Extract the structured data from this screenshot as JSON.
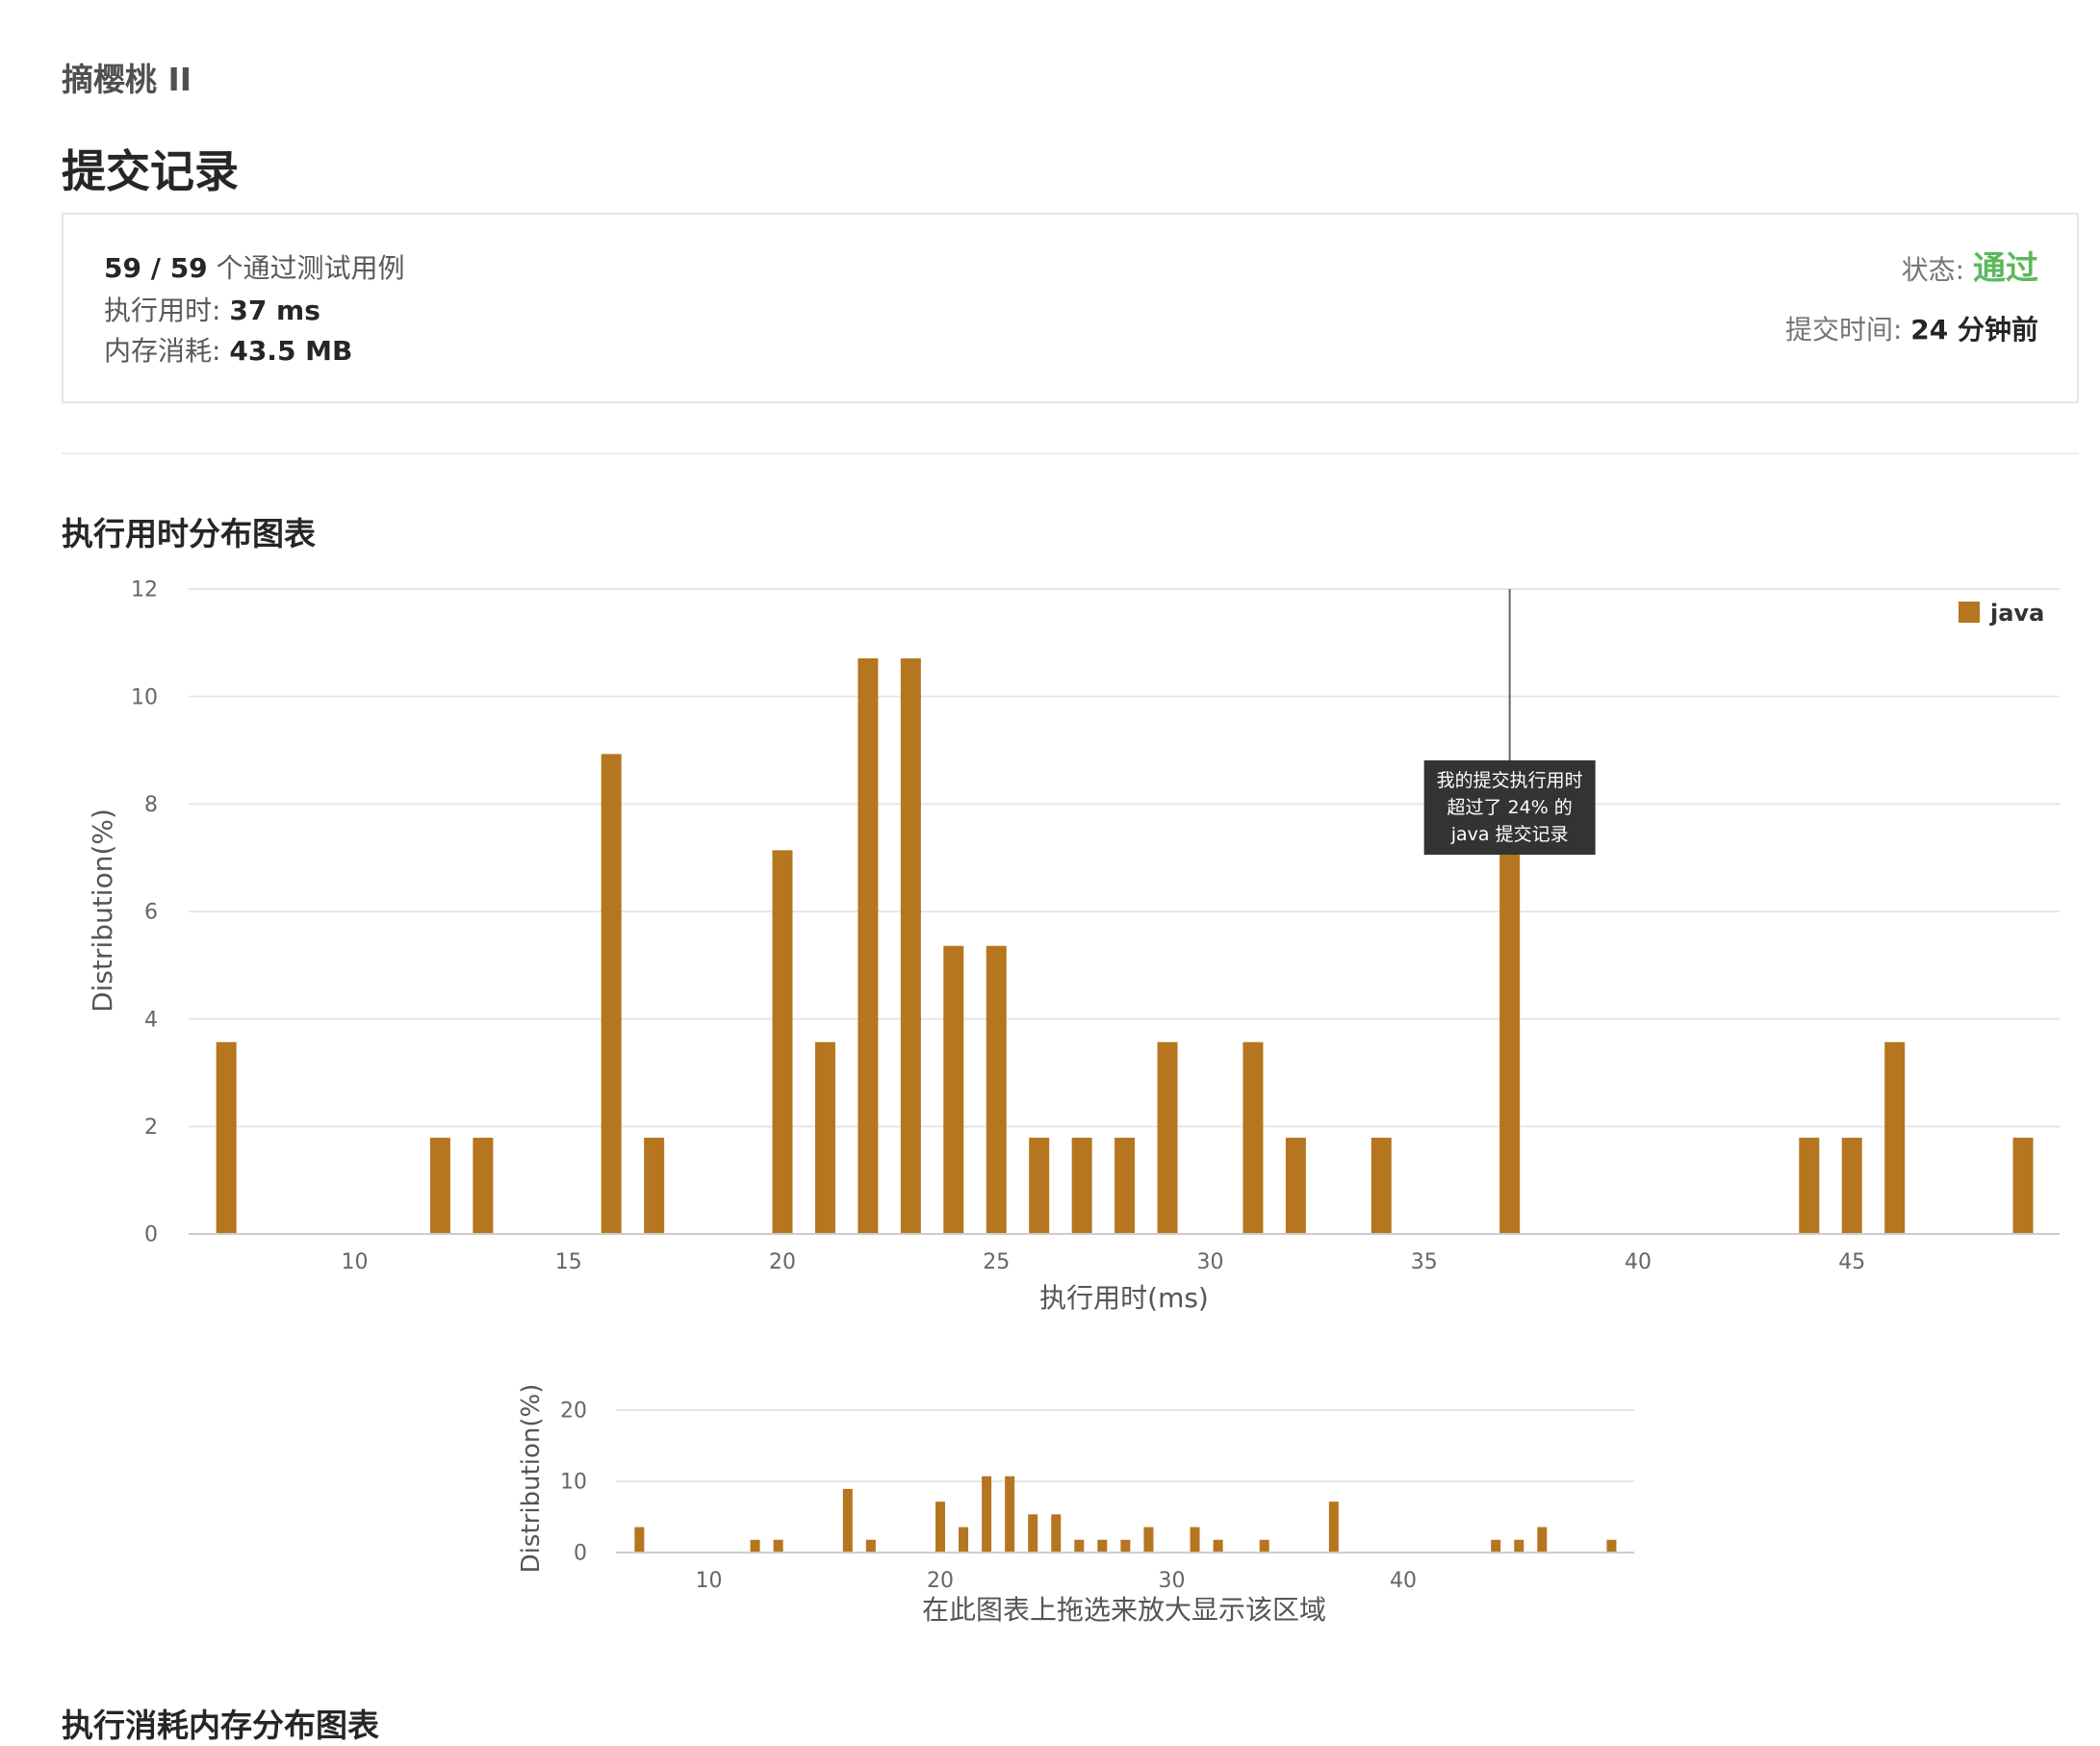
{
  "problem": {
    "title": "摘樱桃 II"
  },
  "page": {
    "heading": "提交记录"
  },
  "summary": {
    "passed": "59 / 59",
    "passed_suffix": " 个通过测试用例",
    "runtime_label": "执行用时: ",
    "runtime_value": "37 ms",
    "memory_label": "内存消耗: ",
    "memory_value": "43.5 MB",
    "status_label": "状态: ",
    "status_value": "通过",
    "submit_time_label": "提交时间: ",
    "submit_time_value": "24 分钟前",
    "status_color": "#5cb85c"
  },
  "sections": {
    "runtime_chart_title": "执行用时分布图表",
    "memory_chart_title": "执行消耗内存分布图表"
  },
  "chart_data": [
    {
      "type": "bar",
      "xlabel": "执行用时(ms)",
      "ylabel": "Distribution(%)",
      "ylim": [
        0,
        12
      ],
      "yticks": [
        0,
        2,
        4,
        6,
        8,
        10,
        12
      ],
      "xticks": [
        10,
        15,
        20,
        25,
        30,
        35,
        40,
        45
      ],
      "grid": true,
      "legend_position": "top-right",
      "series": [
        {
          "name": "java",
          "color": "#b5761f",
          "x": [
            7,
            12,
            13,
            16,
            17,
            20,
            21,
            22,
            23,
            24,
            25,
            26,
            27,
            28,
            29,
            31,
            32,
            34,
            37,
            44,
            45,
            46,
            49
          ],
          "values": [
            3.57,
            1.79,
            1.79,
            8.93,
            1.79,
            7.14,
            3.57,
            10.71,
            10.71,
            5.36,
            5.36,
            1.79,
            1.79,
            1.79,
            3.57,
            3.57,
            1.79,
            1.79,
            7.14,
            1.79,
            1.79,
            3.57,
            1.79
          ]
        }
      ],
      "marker": {
        "x": 37,
        "tooltip": [
          "我的提交执行用时",
          "超过了 24% 的",
          "java 提交记录"
        ]
      }
    },
    {
      "type": "bar",
      "xlabel": "在此图表上拖选来放大显示该区域",
      "ylabel": "Distribution(%)",
      "ylim": [
        0,
        20
      ],
      "yticks": [
        0,
        10,
        20
      ],
      "xticks": [
        10,
        20,
        30,
        40
      ],
      "grid": true,
      "series": [
        {
          "color": "#b5761f",
          "x": [
            7,
            12,
            13,
            16,
            17,
            20,
            21,
            22,
            23,
            24,
            25,
            26,
            27,
            28,
            29,
            31,
            32,
            34,
            37,
            44,
            45,
            46,
            49
          ],
          "values": [
            3.57,
            1.79,
            1.79,
            8.93,
            1.79,
            7.14,
            3.57,
            10.71,
            10.71,
            5.36,
            5.36,
            1.79,
            1.79,
            1.79,
            3.57,
            3.57,
            1.79,
            1.79,
            7.14,
            1.79,
            1.79,
            3.57,
            1.79
          ]
        }
      ]
    }
  ]
}
